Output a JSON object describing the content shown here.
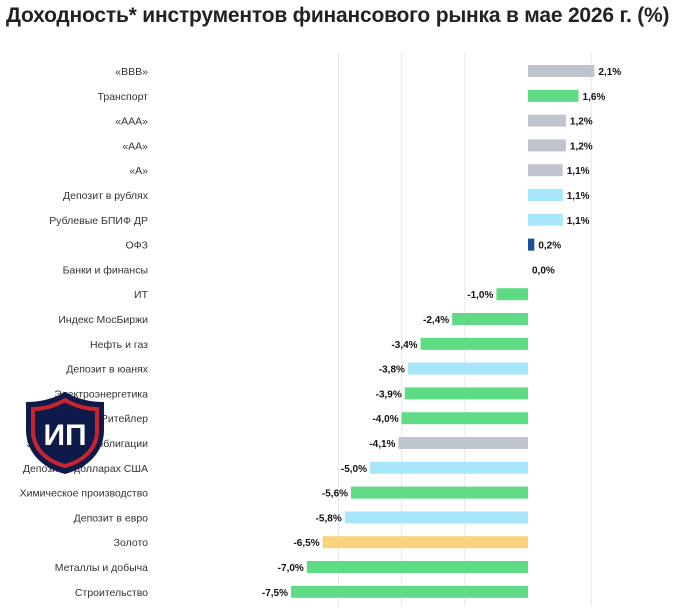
{
  "page": {
    "title": "Доходность* инструментов финансового рынка в мае 2026 г. (%)"
  },
  "logo": {
    "text": "ИП",
    "name": "ip-shield-logo"
  },
  "colors": {
    "grey": "#bfc4cf",
    "green": "#5fdb86",
    "lightblue": "#a8e6fb",
    "navy": "#1d4e9c",
    "yellow": "#f8d47c",
    "grid": "#e4e6ea",
    "text": "#333333",
    "value_text": "#111111",
    "logo_dark": "#0d1a4a",
    "logo_red": "#c9242c"
  },
  "chart_data": {
    "type": "bar",
    "orientation": "horizontal",
    "title": "Доходность* инструментов финансового рынка в мае 2026 г. (%)",
    "xlabel": "",
    "ylabel": "",
    "grid": true,
    "xlim": [
      -8.5,
      3.0
    ],
    "categories": [
      "«BBB»",
      "Транспорт",
      "«AAA»",
      "«AA»",
      "«A»",
      "Депозит в рублях",
      "Рублевые БПИФ ДР",
      "ОФЗ",
      "Банки и финансы",
      "ИТ",
      "Индекс МосБиржи",
      "Нефть и газ",
      "Депозит в юанях",
      "Электроэнергетика",
      "Ритейлер",
      "Замещающие облигации",
      "Депозит в долларах США",
      "Химическое производство",
      "Депозит в евро",
      "Золото",
      "Металлы и добыча",
      "Строительство"
    ],
    "values": [
      2.1,
      1.6,
      1.2,
      1.2,
      1.1,
      1.1,
      1.1,
      0.2,
      0.0,
      -1.0,
      -2.4,
      -3.4,
      -3.8,
      -3.9,
      -4.0,
      -4.1,
      -5.0,
      -5.6,
      -5.8,
      -6.5,
      -7.0,
      -7.5
    ],
    "value_labels": [
      "2,1%",
      "1,6%",
      "1,2%",
      "1,2%",
      "1,1%",
      "1,1%",
      "1,1%",
      "0,2%",
      "0,0%",
      "-1,0%",
      "-2,4%",
      "-3,4%",
      "-3,8%",
      "-3,9%",
      "-4,0%",
      "-4,1%",
      "-5,0%",
      "-5,6%",
      "-5,8%",
      "-6,5%",
      "-7,0%",
      "-7,5%"
    ],
    "bar_colors": [
      "grey",
      "green",
      "grey",
      "grey",
      "grey",
      "lightblue",
      "lightblue",
      "navy",
      "grey",
      "green",
      "green",
      "green",
      "lightblue",
      "green",
      "green",
      "grey",
      "lightblue",
      "green",
      "lightblue",
      "yellow",
      "green",
      "green"
    ]
  }
}
